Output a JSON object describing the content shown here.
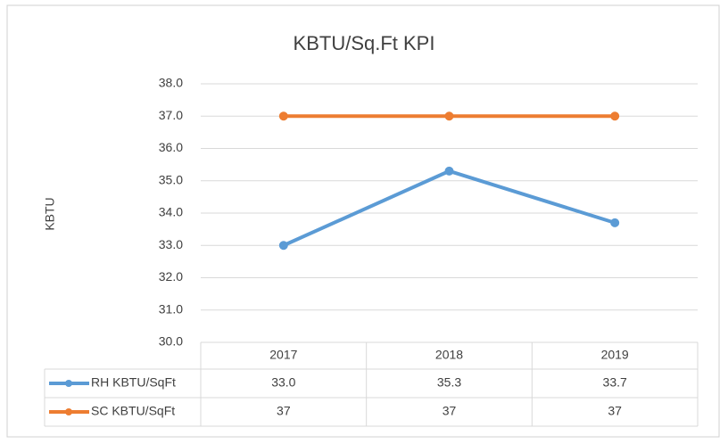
{
  "chart_data": {
    "type": "line",
    "title": "KBTU/Sq.Ft KPI",
    "y_label": "KBTU",
    "categories": [
      "2017",
      "2018",
      "2019"
    ],
    "series": [
      {
        "name": "RH KBTU/SqFt",
        "color": "#5b9bd5",
        "values": [
          33.0,
          35.3,
          33.7
        ],
        "value_labels": [
          "33.0",
          "35.3",
          "33.7"
        ]
      },
      {
        "name": "SC KBTU/SqFt",
        "color": "#ed7d31",
        "values": [
          37,
          37,
          37
        ]
      }
    ],
    "ylim": [
      30,
      38
    ],
    "yticks": [
      {
        "value": 30,
        "label": "30.0"
      },
      {
        "value": 31,
        "label": "31.0"
      },
      {
        "value": 32,
        "label": "32.0"
      },
      {
        "value": 33,
        "label": "33.0"
      },
      {
        "value": 34,
        "label": "34.0"
      },
      {
        "value": 35,
        "label": "35.0"
      },
      {
        "value": 36,
        "label": "36.0"
      },
      {
        "value": 37,
        "label": "37.0"
      },
      {
        "value": 38,
        "label": "38.0"
      }
    ],
    "grid": true,
    "data_table": true
  }
}
